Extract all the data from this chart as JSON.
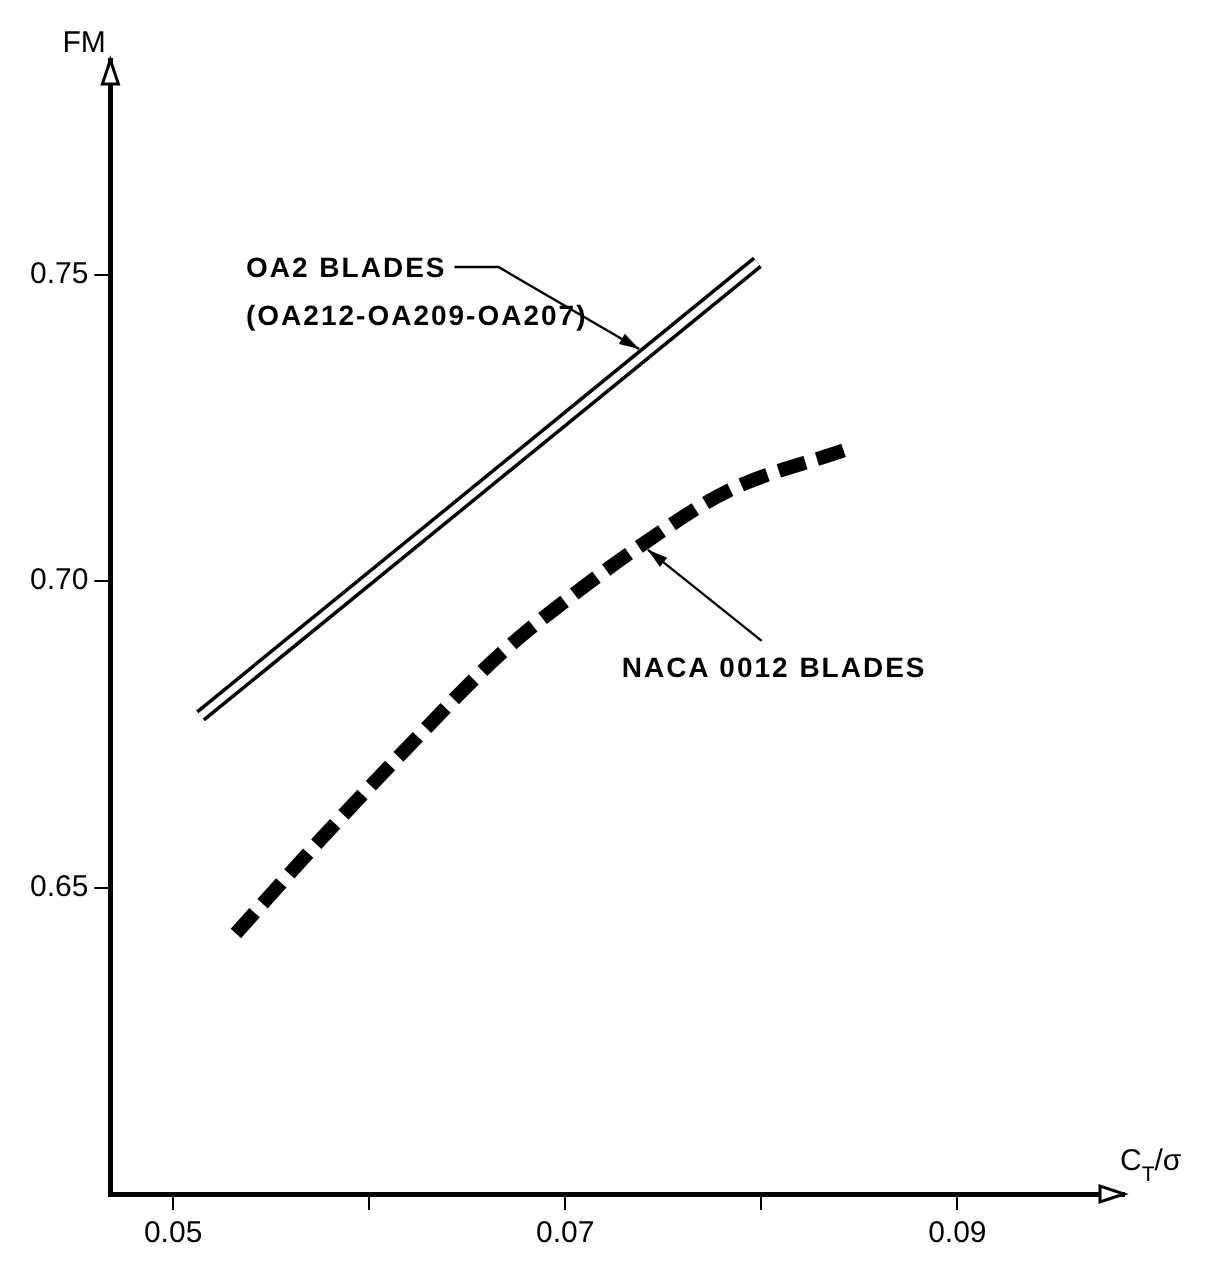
{
  "chart_data": {
    "type": "line",
    "xlabel": "C$_{T}$/σ",
    "ylabel": "FM",
    "xlim": [
      0.0468,
      0.0985
    ],
    "ylim": [
      0.6,
      0.785
    ],
    "xticks": [
      {
        "value": 0.05,
        "label": "0.05"
      },
      {
        "value": 0.06,
        "label": null
      },
      {
        "value": 0.07,
        "label": "0.07"
      },
      {
        "value": 0.08,
        "label": null
      },
      {
        "value": 0.09,
        "label": "0.09"
      }
    ],
    "yticks": [
      {
        "value": 0.65,
        "label": "0.65"
      },
      {
        "value": 0.7,
        "label": "0.70"
      },
      {
        "value": 0.75,
        "label": "0.75"
      }
    ],
    "grid": false,
    "legend": false,
    "marker": "none",
    "series": [
      {
        "name": "OA2 BLADES (OA212-OA209-OA207)",
        "color": "#000000",
        "line_style": "solid",
        "x": [
          0.0514,
          0.0798
        ],
        "values": [
          0.678,
          0.752
        ]
      },
      {
        "name": "NACA 0012 BLADES",
        "color": "#000000",
        "line_style": "dashed",
        "x": [
          0.0532,
          0.0576,
          0.0617,
          0.0668,
          0.0703,
          0.0739,
          0.0783,
          0.0842
        ],
        "values": [
          0.6425,
          0.6581,
          0.672,
          0.6884,
          0.6975,
          0.7059,
          0.7147,
          0.7213
        ]
      }
    ]
  }
}
